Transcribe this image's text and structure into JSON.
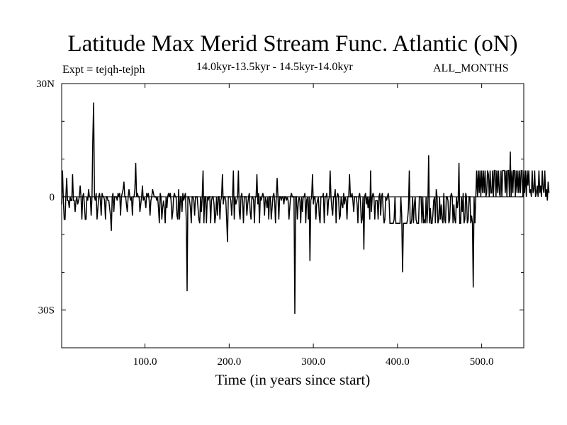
{
  "chart_data": {
    "type": "line",
    "title": "Latitude Max Merid Stream Func. Atlantic (oN)",
    "subtitle_left": "Expt = tejqh-tejph",
    "subtitle_center": "14.0kyr-13.5kyr - 14.5kyr-14.0kyr",
    "subtitle_right": "ALL_MONTHS",
    "xlabel": "Time (in years since start)",
    "ylabel": "",
    "xlim": [
      1,
      550
    ],
    "ylim": [
      -40,
      30
    ],
    "xticks": [
      100,
      200,
      300,
      400,
      500
    ],
    "xtick_labels": [
      "100.0",
      "200.0",
      "300.0",
      "400.0",
      "500.0"
    ],
    "yticks": [
      30,
      0,
      -30
    ],
    "ytick_labels": [
      "30N",
      "0",
      "30S"
    ],
    "zero_line": true,
    "series": [
      {
        "name": "difference",
        "x_start": 1,
        "x_step": 1,
        "y": [
          -2,
          7,
          -1,
          -6,
          -6,
          0,
          5,
          -1,
          -1,
          -3,
          0,
          -1,
          -1,
          6,
          -1,
          -1,
          -4,
          -1,
          0,
          -2,
          -1,
          0,
          3,
          0,
          -6,
          0,
          1,
          -2,
          -6,
          -6,
          0,
          -1,
          2,
          0,
          0,
          -5,
          0,
          15,
          25,
          0,
          -1,
          1,
          -6,
          -3,
          0,
          1,
          -1,
          -5,
          1,
          0,
          0,
          -1,
          -6,
          0,
          0,
          -1,
          -1,
          -3,
          -5,
          -9,
          0,
          1,
          -4,
          0,
          0,
          0,
          -1,
          1,
          0,
          1,
          -5,
          0,
          1,
          2,
          4,
          0,
          0,
          -2,
          -4,
          0,
          2,
          0,
          -1,
          0,
          -5,
          0,
          0,
          2,
          9,
          0,
          1,
          0,
          0,
          -4,
          -2,
          0,
          3,
          -1,
          0,
          -1,
          -3,
          1,
          0,
          1,
          -1,
          -5,
          -1,
          0,
          2,
          1,
          0,
          0,
          0,
          -1,
          0,
          -3,
          -7,
          1,
          0,
          -6,
          -3,
          -1,
          -3,
          -7,
          0,
          -3,
          0,
          1,
          0,
          1,
          -1,
          -6,
          -4,
          0,
          1,
          0,
          0,
          -5,
          -6,
          2,
          -6,
          0,
          0,
          -4,
          1,
          -1,
          0,
          1,
          -6,
          -25,
          0,
          0,
          -1,
          -3,
          -7,
          0,
          0,
          -1,
          -5,
          0,
          0,
          0,
          -3,
          -6,
          -7,
          0,
          -4,
          0,
          7,
          -7,
          0,
          0,
          -7,
          0,
          -1,
          0,
          0,
          -7,
          -1,
          0,
          0,
          -2,
          -7,
          -5,
          0,
          -5,
          0,
          0,
          -6,
          -1,
          0,
          6,
          -2,
          0,
          0,
          -1,
          -6,
          -12,
          0,
          0,
          0,
          -1,
          -5,
          0,
          7,
          -6,
          0,
          -2,
          -1,
          0,
          7,
          -4,
          -6,
          0,
          1,
          -1,
          -7,
          0,
          0,
          0,
          -5,
          -2,
          0,
          1,
          -4,
          -6,
          0,
          0,
          -1,
          -7,
          0,
          0,
          6,
          -2,
          1,
          -7,
          0,
          -1,
          0,
          1,
          0,
          -5,
          0,
          -1,
          -3,
          0,
          -6,
          0,
          0,
          -6,
          -3,
          0,
          1,
          -1,
          -7,
          0,
          5,
          0,
          -6,
          0,
          0,
          -1,
          0,
          0,
          -2,
          0,
          0,
          -1,
          0,
          -1,
          -6,
          -3,
          0,
          1,
          0,
          0,
          0,
          -31,
          0,
          0,
          -6,
          -2,
          0,
          -1,
          -7,
          0,
          -4,
          0,
          0,
          1,
          -7,
          -1,
          0,
          -6,
          0,
          -17,
          -1,
          0,
          6,
          -2,
          0,
          0,
          -6,
          -2,
          -1,
          0,
          -5,
          -7,
          0,
          0,
          0,
          1,
          -7,
          0,
          0,
          1,
          -5,
          -1,
          0,
          7,
          0,
          -3,
          -5,
          0,
          0,
          2,
          -7,
          0,
          1,
          0,
          -6,
          -5,
          0,
          -2,
          -3,
          1,
          -2,
          0,
          -1,
          -6,
          0,
          0,
          6,
          0,
          0,
          1,
          -1,
          -4,
          0,
          0,
          0,
          -2,
          -7,
          0,
          1,
          -1,
          -7,
          -6,
          0,
          -14,
          0,
          1,
          -2,
          0,
          -3,
          0,
          -6,
          7,
          -4,
          0,
          1,
          0,
          -6,
          -1,
          -1,
          -1,
          -6,
          0,
          1,
          -5,
          0,
          1,
          -4,
          -7,
          -6,
          0,
          -1,
          0,
          1,
          -1,
          -7,
          -7,
          -7,
          -7,
          -7,
          -6,
          0,
          -7,
          -7,
          -7,
          -7,
          -7,
          -7,
          0,
          -5,
          -20,
          -7,
          -7,
          -7,
          -7,
          -7,
          -6,
          -3,
          7,
          -7,
          -7,
          -6,
          0,
          -7,
          -2,
          0,
          -6,
          -7,
          -7,
          -7,
          0,
          0,
          0,
          -7,
          0,
          -7,
          -6,
          -7,
          0,
          -7,
          -3,
          11,
          -7,
          -3,
          -7,
          -7,
          -5,
          -1,
          0,
          -7,
          2,
          0,
          -7,
          -6,
          0,
          -6,
          -2,
          -6,
          -7,
          1,
          -6,
          -7,
          0,
          0,
          -1,
          -7,
          -6,
          0,
          1,
          0,
          -7,
          -2,
          -6,
          -7,
          0,
          -3,
          -1,
          9,
          -7,
          -7,
          0,
          -4,
          1,
          -7,
          -6,
          1,
          0,
          -7,
          -6,
          0,
          0,
          -7,
          -5,
          -7,
          -24,
          0,
          -7,
          0,
          7,
          0,
          7,
          1,
          7,
          0,
          7,
          1,
          7,
          1,
          7,
          0,
          1,
          7,
          6,
          0,
          7,
          1,
          1,
          7,
          0,
          7,
          7,
          0,
          7,
          1,
          7,
          1,
          0,
          7,
          0,
          7,
          7,
          7,
          1,
          7,
          0,
          7,
          7,
          0,
          12,
          0,
          7,
          1,
          7,
          7,
          0,
          7,
          1,
          7,
          1,
          7,
          1,
          7,
          7,
          0,
          7,
          1,
          7,
          0,
          7,
          3,
          7,
          1,
          2,
          0,
          7,
          1,
          2,
          7,
          0,
          1,
          3,
          0,
          7,
          1,
          3,
          0,
          7,
          2,
          1,
          7,
          0,
          2,
          -1,
          4,
          1
        ]
      }
    ]
  }
}
